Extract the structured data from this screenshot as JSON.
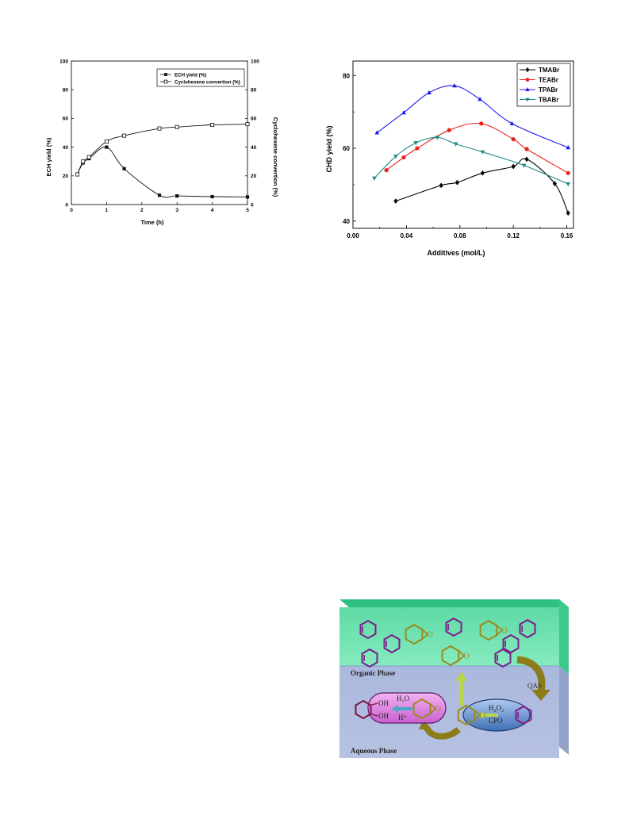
{
  "chart_data": [
    {
      "type": "line",
      "title": "",
      "xlabel": "Time (h)",
      "ylabel": "ECH yield (%)",
      "y2label": "Cyclohexene convertion (%)",
      "xlim": [
        0,
        5
      ],
      "ylim": [
        0,
        100
      ],
      "y2lim": [
        0,
        100
      ],
      "xticks": [
        "0",
        "1",
        "2",
        "3",
        "4",
        "5"
      ],
      "yticks": [
        "0",
        "20",
        "40",
        "60",
        "80",
        "100"
      ],
      "y2ticks": [
        "0",
        "20",
        "40",
        "60",
        "80",
        "100"
      ],
      "grid": false,
      "legend_position": "top-right",
      "series": [
        {
          "name": "ECH yield (%)",
          "marker": "filled-square",
          "color": "#111111",
          "x": [
            0.17,
            0.33,
            0.5,
            1.0,
            1.5,
            2.5,
            3.0,
            4.0,
            5.0
          ],
          "y": [
            21,
            29,
            32,
            40,
            25,
            6.5,
            6,
            5.5,
            5.3
          ]
        },
        {
          "name": "Cyclohexene convertion (%)",
          "marker": "open-square",
          "color": "#111111",
          "x": [
            0.17,
            0.33,
            0.5,
            1.0,
            1.5,
            2.5,
            3.0,
            4.0,
            5.0
          ],
          "y": [
            21,
            30,
            33,
            44,
            48,
            53,
            54,
            55.5,
            56
          ]
        }
      ]
    },
    {
      "type": "line",
      "title": "",
      "xlabel": "Additives (mol/L)",
      "ylabel": "CHD yield (%)",
      "xlim": [
        0.0,
        0.165
      ],
      "ylim": [
        38,
        84
      ],
      "xticks": [
        "0.00",
        "0.04",
        "0.08",
        "0.12",
        "0.16"
      ],
      "yticks": [
        "40",
        "60",
        "80"
      ],
      "grid": false,
      "legend_position": "top-right",
      "series": [
        {
          "name": "TMABr",
          "marker": "diamond",
          "color": "#000000",
          "x": [
            0.032,
            0.066,
            0.078,
            0.097,
            0.12,
            0.13,
            0.151,
            0.161
          ],
          "y": [
            45.5,
            49.8,
            50.6,
            53.2,
            55,
            57,
            50.3,
            42.2
          ]
        },
        {
          "name": "TEABr",
          "marker": "circle",
          "color": "#e8211c",
          "x": [
            0.025,
            0.038,
            0.048,
            0.072,
            0.096,
            0.12,
            0.13,
            0.161
          ],
          "y": [
            54,
            57.5,
            60,
            65,
            66.8,
            62.5,
            59.8,
            53.2
          ]
        },
        {
          "name": "TPABr",
          "marker": "triangle-up",
          "color": "#1a1aef",
          "x": [
            0.018,
            0.038,
            0.057,
            0.076,
            0.095,
            0.119,
            0.161
          ],
          "y": [
            64.3,
            69.8,
            75.3,
            77.2,
            73.5,
            66.8,
            60.2
          ]
        },
        {
          "name": "TBABr",
          "marker": "triangle-down",
          "color": "#1f8a87",
          "x": [
            0.016,
            0.032,
            0.047,
            0.063,
            0.077,
            0.097,
            0.128,
            0.161
          ],
          "y": [
            51.8,
            57.8,
            61.5,
            63,
            61.2,
            59,
            55.3,
            50.2
          ]
        }
      ]
    }
  ],
  "scheme": {
    "organic_label": "Organic Phase",
    "aqueous_label": "Aqueous Phase",
    "qas_label": "QAS",
    "h2o2_label": "H₂O₂",
    "cpo_label": "CPO",
    "h2o_label": "H₂O",
    "hplus_label": "H⁺",
    "oh_label": "OH",
    "o_label": "O"
  }
}
